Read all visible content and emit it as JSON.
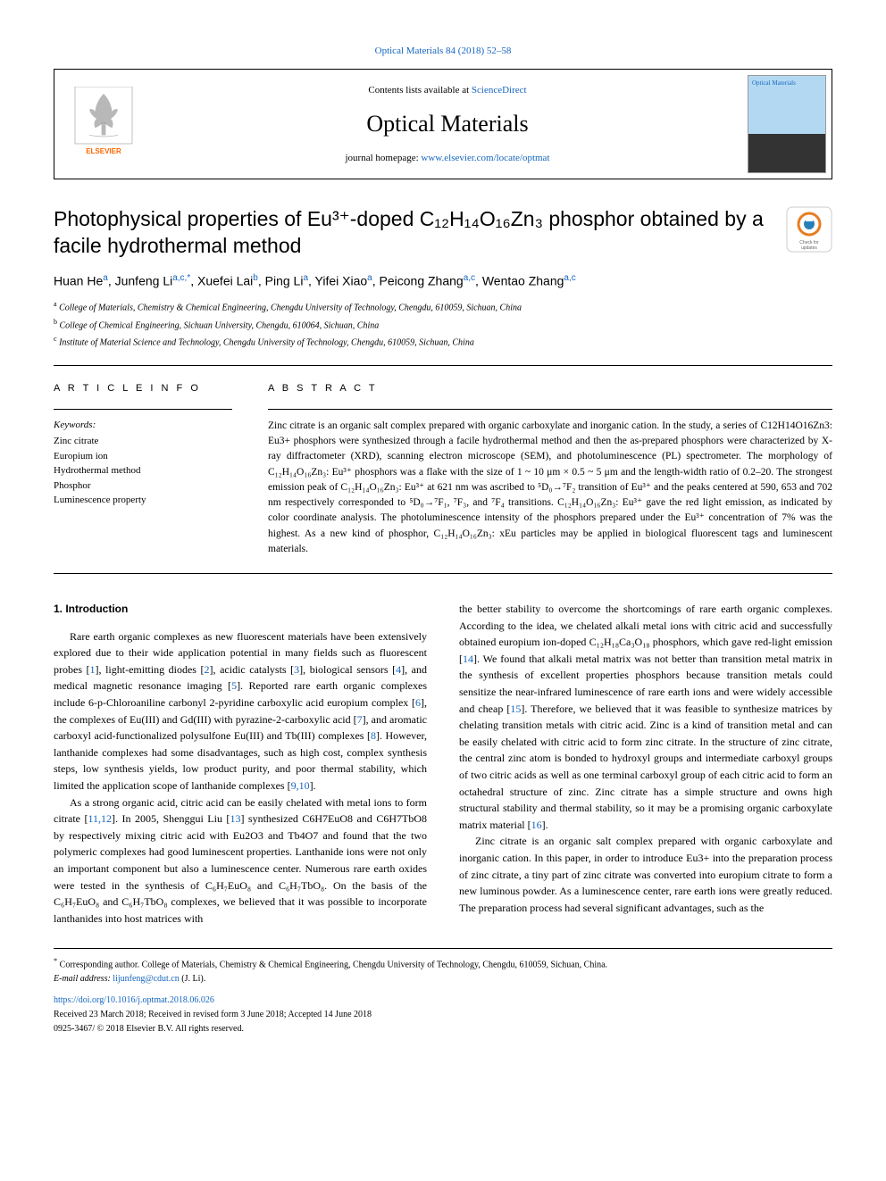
{
  "top_citation": "Optical Materials 84 (2018) 52–58",
  "header": {
    "contents_prefix": "Contents lists available at ",
    "contents_link": "ScienceDirect",
    "journal_name": "Optical Materials",
    "homepage_prefix": "journal homepage: ",
    "homepage_url": "www.elsevier.com/locate/optmat",
    "cover_label": "Optical Materials"
  },
  "title": "Photophysical properties of Eu³⁺-doped C₁₂H₁₄O₁₆Zn₃ phosphor obtained by a facile hydrothermal method",
  "updates_label": "Check for updates",
  "authors_html": "Huan He<sup>a</sup>, Junfeng Li<sup>a,c,*</sup>, Xuefei Lai<sup>b</sup>, Ping Li<sup>a</sup>, Yifei Xiao<sup>a</sup>, Peicong Zhang<sup>a,c</sup>, Wentao Zhang<sup>a,c</sup>",
  "affiliations": [
    {
      "sup": "a",
      "text": "College of Materials, Chemistry & Chemical Engineering, Chengdu University of Technology, Chengdu, 610059, Sichuan, China"
    },
    {
      "sup": "b",
      "text": "College of Chemical Engineering, Sichuan University, Chengdu, 610064, Sichuan, China"
    },
    {
      "sup": "c",
      "text": "Institute of Material Science and Technology, Chengdu University of Technology, Chengdu, 610059, Sichuan, China"
    }
  ],
  "article_info_label": "A R T I C L E  I N F O",
  "abstract_label": "A B S T R A C T",
  "keywords_label": "Keywords:",
  "keywords": [
    "Zinc citrate",
    "Europium ion",
    "Hydrothermal method",
    "Phosphor",
    "Luminescence property"
  ],
  "abstract": "Zinc citrate is an organic salt complex prepared with organic carboxylate and inorganic cation. In the study, a series of C12H14O16Zn3: Eu3+ phosphors were synthesized through a facile hydrothermal method and then the as-prepared phosphors were characterized by X-ray diffractometer (XRD), scanning electron microscope (SEM), and photoluminescence (PL) spectrometer. The morphology of C₁₂H₁₄O₁₆Zn₃: Eu³⁺ phosphors was a flake with the size of 1 ~ 10 μm × 0.5 ~ 5 μm and the length-width ratio of 0.2–20. The strongest emission peak of C₁₂H₁₄O₁₆Zn₃: Eu³⁺ at 621 nm was ascribed to ⁵D₀→⁷F₂ transition of Eu³⁺ and the peaks centered at 590, 653 and 702 nm respectively corresponded to ⁵D₀→⁷F₁, ⁷F₃, and ⁷F₄ transitions. C₁₂H₁₄O₁₆Zn₃: Eu³⁺ gave the red light emission, as indicated by color coordinate analysis. The photoluminescence intensity of the phosphors prepared under the Eu³⁺ concentration of 7% was the highest. As a new kind of phosphor, C₁₂H₁₄O₁₆Zn₃: xEu particles may be applied in biological fluorescent tags and luminescent materials.",
  "intro_heading": "1. Introduction",
  "col1": {
    "p1": "Rare earth organic complexes as new fluorescent materials have been extensively explored due to their wide application potential in many fields such as fluorescent probes [1], light-emitting diodes [2], acidic catalysts [3], biological sensors [4], and medical magnetic resonance imaging [5]. Reported rare earth organic complexes include 6-p-Chloroaniline carbonyl 2-pyridine carboxylic acid europium complex [6], the complexes of Eu(III) and Gd(III) with pyrazine-2-carboxylic acid [7], and aromatic carboxyl acid-functionalized polysulfone Eu(III) and Tb(III) complexes [8]. However, lanthanide complexes had some disadvantages, such as high cost, complex synthesis steps, low synthesis yields, low product purity, and poor thermal stability, which limited the application scope of lanthanide complexes [9,10].",
    "p2": "As a strong organic acid, citric acid can be easily chelated with metal ions to form citrate [11,12]. In 2005, Shenggui Liu [13] synthesized C6H7EuO8 and C6H7TbO8 by respectively mixing citric acid with Eu2O3 and Tb4O7 and found that the two polymeric complexes had good luminescent properties. Lanthanide ions were not only an important component but also a luminescence center. Numerous rare earth oxides were tested in the synthesis of C₆H₇EuO₈ and C₆H₇TbO₈. On the basis of the C₆H₇EuO₈ and C₆H₇TbO₈ complexes, we believed that it was possible to incorporate lanthanides into host matrices with"
  },
  "col2": {
    "p1": "the better stability to overcome the shortcomings of rare earth organic complexes. According to the idea, we chelated alkali metal ions with citric acid and successfully obtained europium ion-doped C₁₂H₁₈Ca₃O₁₈ phosphors, which gave red-light emission [14]. We found that alkali metal matrix was not better than transition metal matrix in the synthesis of excellent properties phosphors because transition metals could sensitize the near-infrared luminescence of rare earth ions and were widely accessible and cheap [15]. Therefore, we believed that it was feasible to synthesize matrices by chelating transition metals with citric acid. Zinc is a kind of transition metal and can be easily chelated with citric acid to form zinc citrate. In the structure of zinc citrate, the central zinc atom is bonded to hydroxyl groups and intermediate carboxyl groups of two citric acids as well as one terminal carboxyl group of each citric acid to form an octahedral structure of zinc. Zinc citrate has a simple structure and owns high structural stability and thermal stability, so it may be a promising organic carboxylate matrix material [16].",
    "p2": "Zinc citrate is an organic salt complex prepared with organic carboxylate and inorganic cation. In this paper, in order to introduce Eu3+ into the preparation process of zinc citrate, a tiny part of zinc citrate was converted into europium citrate to form a new luminous powder. As a luminescence center, rare earth ions were greatly reduced. The preparation process had several significant advantages, such as the"
  },
  "footnote": {
    "star": "*",
    "corr": "Corresponding author. College of Materials, Chemistry & Chemical Engineering, Chengdu University of Technology, Chengdu, 610059, Sichuan, China.",
    "email_label": "E-mail address: ",
    "email": "lijunfeng@cdut.cn",
    "email_suffix": " (J. Li)."
  },
  "doi": "https://doi.org/10.1016/j.optmat.2018.06.026",
  "received": "Received 23 March 2018; Received in revised form 3 June 2018; Accepted 14 June 2018",
  "copyright": "0925-3467/ © 2018 Elsevier B.V. All rights reserved.",
  "colors": {
    "link": "#1565c0",
    "text": "#000000",
    "badge_ring": "#e67e22",
    "badge_inner": "#2980b9"
  }
}
